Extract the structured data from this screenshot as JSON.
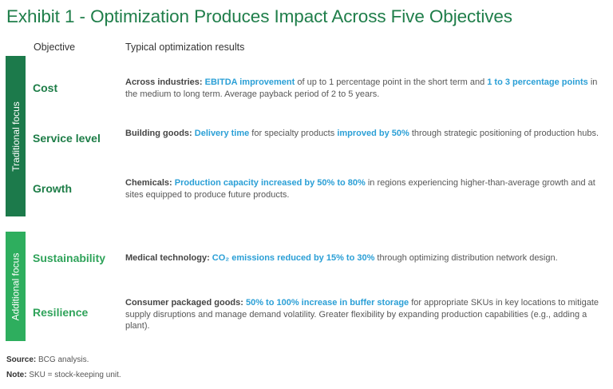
{
  "title": "Exhibit 1 - Optimization Produces Impact Across Five Objectives",
  "headers": {
    "objective": "Objective",
    "results": "Typical optimization results"
  },
  "groups": {
    "traditional": "Traditional focus",
    "additional": "Additional focus"
  },
  "rows": [
    {
      "objective": "Cost",
      "label": "Across industries: ",
      "p1": "EBITDA improvement",
      "p2": " of up to 1 percentage point in the short term and ",
      "p3": "1 to 3 percentage points",
      "p4": " in the medium to long term. Average payback period of 2 to 5 years."
    },
    {
      "objective": "Service level",
      "label": "Building goods: ",
      "p1": "Delivery time",
      "p2": " for specialty products ",
      "p3": "improved by 50%",
      "p4": " through strategic positioning of production hubs."
    },
    {
      "objective": "Growth",
      "label": "Chemicals: ",
      "p1": "Production capacity increased by 50% to 80%",
      "p2": " in regions experiencing higher-than-average growth and at sites equipped to produce future products."
    },
    {
      "objective": "Sustainability",
      "label": "Medical technology: ",
      "p1": "CO₂ emissions reduced by 15% to 30%",
      "p2": " through optimizing distribution network design."
    },
    {
      "objective": "Resilience",
      "label": "Consumer packaged goods: ",
      "p1": "50% to 100% increase in buffer storage",
      "p2": " for appropriate SKUs in key locations to mitigate supply disruptions and manage demand volatility. Greater flexibility by expanding production capabilities (e.g., adding a plant)."
    }
  ],
  "footer": {
    "source_label": "Source:",
    "source_text": " BCG analysis.",
    "note_label": "Note:",
    "note_text": " SKU = stock-keeping unit."
  },
  "colors": {
    "title": "#1f7e4a",
    "traditional_band": "#1c7a4b",
    "additional_band": "#2eae5e",
    "highlight": "#2a9fd6"
  }
}
